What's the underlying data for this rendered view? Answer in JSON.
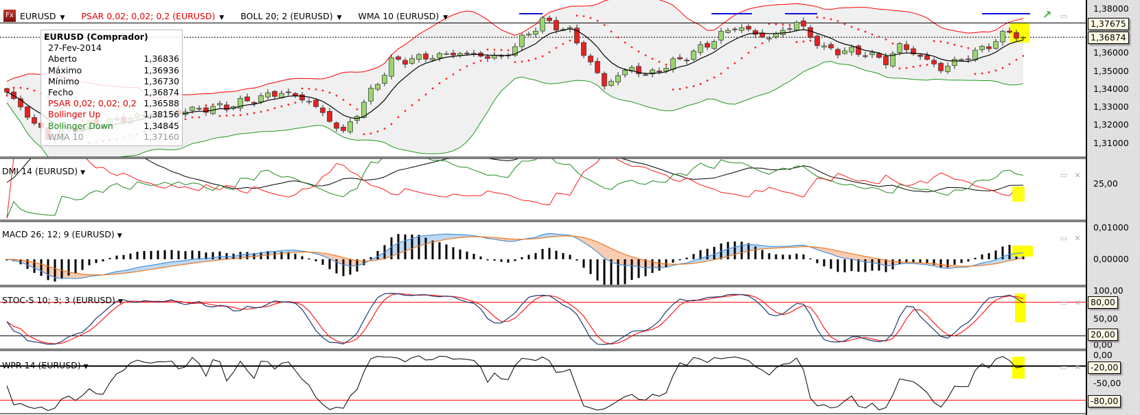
{
  "header": {
    "logo": "Fx",
    "items": [
      {
        "label": "EURUSD",
        "color": "#000000"
      },
      {
        "label": "PSAR 0,02; 0,02; 0,2 (EURUSD)",
        "color": "#e00000"
      },
      {
        "label": "BOLL 20; 2 (EURUSD)",
        "color": "#000000"
      },
      {
        "label": "WMA 10 (EURUSD)",
        "color": "#000000"
      }
    ]
  },
  "info": {
    "title": "EURUSD (Comprador)",
    "date": "27-Fev-2014",
    "rows": [
      {
        "label": "Aberto",
        "value": "1,36836",
        "color": "#000000"
      },
      {
        "label": "Máximo",
        "value": "1,36936",
        "color": "#000000"
      },
      {
        "label": "Mínimo",
        "value": "1,36730",
        "color": "#000000"
      },
      {
        "label": "Fecho",
        "value": "1,36874",
        "color": "#000000"
      },
      {
        "label": "PSAR 0,02; 0,02; 0,2",
        "value": "1,36588",
        "color": "#e00000"
      },
      {
        "label": "Bollinger Up",
        "value": "1,38156",
        "color": "#e00000"
      },
      {
        "label": "Bollinger Down",
        "value": "1,34845",
        "color": "#1a8a1a"
      },
      {
        "label": "WMA 10",
        "value": "1,37160",
        "color": "#999999"
      }
    ]
  },
  "panes": {
    "dmi": "DMI 14 (EURUSD)",
    "macd": "MACD 26; 12; 9 (EURUSD)",
    "stoc": "STOC-S 10; 3; 3 (EURUSD)",
    "wpr": "WPR 14 (EURUSD)"
  },
  "axis": {
    "price_ticks": [
      "1,38000",
      "1,36000",
      "1,35000",
      "1,34000",
      "1,33000",
      "1,32000",
      "1,31000"
    ],
    "price_boxes": [
      "1,37675",
      "1,36874"
    ],
    "dmi_ticks": [
      "25,00"
    ],
    "macd_ticks": [
      "0,01000",
      "0,00000"
    ],
    "stoc_ticks": [
      "100,00",
      "50,00",
      "0,00"
    ],
    "stoc_boxes": [
      "80,00",
      "20,00"
    ],
    "wpr_ticks": [
      "0,00",
      "-50,00"
    ],
    "wpr_boxes": [
      "-20,00",
      "-80,00"
    ]
  },
  "colors": {
    "bull": "#9ad66f",
    "bear": "#e82020",
    "boll_up": "#ff0000",
    "boll_down": "#1f9a1f",
    "highlight": "#ffff00"
  },
  "chart_data": {
    "type": "candlestick",
    "symbol": "EURUSD",
    "bars": 149,
    "last": {
      "open": 1.36836,
      "high": 1.36936,
      "low": 1.3673,
      "close": 1.36874
    },
    "resistance": 1.37675,
    "price_keypoints": [
      [
        0,
        1.338
      ],
      [
        6,
        1.312
      ],
      [
        10,
        1.318
      ],
      [
        20,
        1.325
      ],
      [
        32,
        1.33
      ],
      [
        40,
        1.338
      ],
      [
        44,
        1.333
      ],
      [
        49,
        1.315
      ],
      [
        56,
        1.355
      ],
      [
        66,
        1.36
      ],
      [
        72,
        1.357
      ],
      [
        78,
        1.378
      ],
      [
        82,
        1.372
      ],
      [
        87,
        1.342
      ],
      [
        91,
        1.352
      ],
      [
        93,
        1.347
      ],
      [
        100,
        1.36
      ],
      [
        106,
        1.375
      ],
      [
        111,
        1.368
      ],
      [
        115,
        1.377
      ],
      [
        119,
        1.362
      ],
      [
        125,
        1.36
      ],
      [
        128,
        1.355
      ],
      [
        130,
        1.364
      ],
      [
        133,
        1.358
      ],
      [
        136,
        1.351
      ],
      [
        142,
        1.362
      ],
      [
        146,
        1.372
      ],
      [
        148,
        1.36874
      ]
    ],
    "ylim": [
      1.305,
      1.388
    ],
    "indicators": [
      "PSAR 0.02/0.02/0.2",
      "Bollinger 20,2",
      "WMA 10",
      "DMI 14",
      "MACD 26,12,9",
      "Stochastic slow 10,3,3",
      "Williams %R 14"
    ],
    "stoc_levels": [
      80,
      20
    ],
    "wpr_levels": [
      -20,
      -80
    ]
  }
}
